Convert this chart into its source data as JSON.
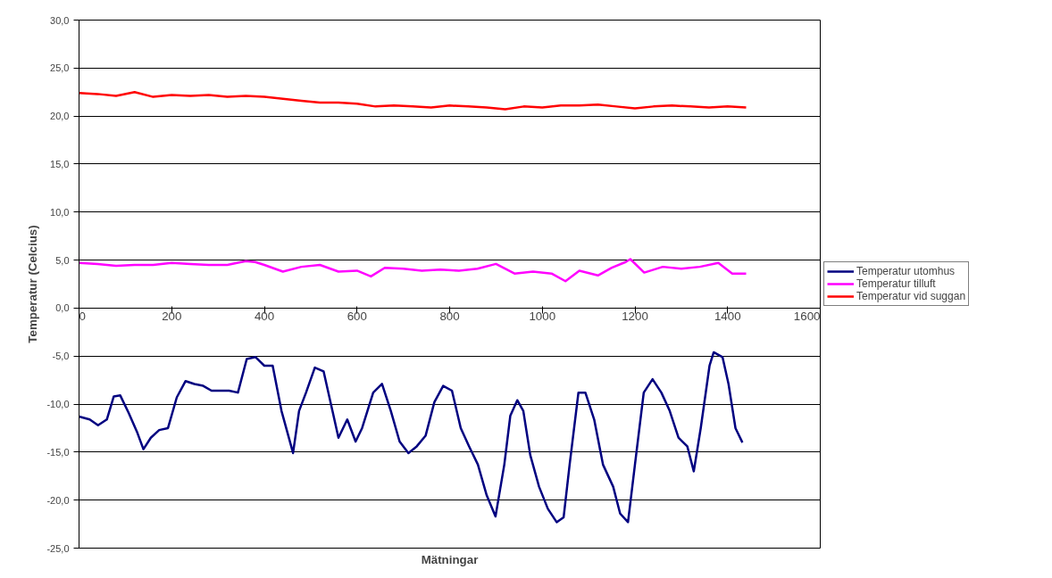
{
  "chart_data": {
    "type": "line",
    "xlabel": "Mätningar",
    "ylabel": "Temperatur (Celcius)",
    "xlim": [
      0,
      1600
    ],
    "ylim": [
      -25,
      30
    ],
    "xticks": [
      0,
      200,
      400,
      600,
      800,
      1000,
      1200,
      1400,
      1600
    ],
    "yticks": [
      {
        "value": -25,
        "label": "-25,0"
      },
      {
        "value": -20,
        "label": "-20,0"
      },
      {
        "value": -15,
        "label": "-15,0"
      },
      {
        "value": -10,
        "label": "-10,0"
      },
      {
        "value": -5,
        "label": "-5,0"
      },
      {
        "value": 0,
        "label": "0,0"
      },
      {
        "value": 5,
        "label": "5,0"
      },
      {
        "value": 10,
        "label": "10,0"
      },
      {
        "value": 15,
        "label": "15,0"
      },
      {
        "value": 20,
        "label": "20,0"
      },
      {
        "value": 25,
        "label": "25,0"
      },
      {
        "value": 30,
        "label": "30,0"
      }
    ],
    "grid": "y",
    "legend": "right",
    "marker": "none",
    "line_style": "solid",
    "series": [
      {
        "name": "Temperatur utomhus",
        "color": "#000080",
        "x": [
          0,
          23,
          41,
          60,
          75,
          89,
          107,
          126,
          139,
          155,
          173,
          192,
          211,
          230,
          249,
          268,
          286,
          324,
          343,
          362,
          381,
          400,
          418,
          437,
          462,
          475,
          490,
          509,
          528,
          547,
          560,
          579,
          597,
          611,
          635,
          654,
          673,
          692,
          711,
          729,
          748,
          767,
          786,
          805,
          824,
          842,
          861,
          880,
          899,
          918,
          931,
          946,
          959,
          974,
          993,
          1012,
          1031,
          1046,
          1059,
          1078,
          1093,
          1112,
          1131,
          1153,
          1168,
          1185,
          1200,
          1219,
          1238,
          1257,
          1275,
          1294,
          1313,
          1327,
          1342,
          1361,
          1370,
          1389,
          1402,
          1417,
          1432
        ],
        "values": [
          -11.3,
          -11.6,
          -12.2,
          -11.6,
          -9.2,
          -9.1,
          -10.9,
          -13.0,
          -14.7,
          -13.5,
          -12.7,
          -12.5,
          -9.3,
          -7.6,
          -7.9,
          -8.1,
          -8.6,
          -8.6,
          -8.8,
          -5.3,
          -5.1,
          -6.0,
          -6.0,
          -10.7,
          -15.1,
          -10.7,
          -8.8,
          -6.2,
          -6.6,
          -10.7,
          -13.5,
          -11.6,
          -13.9,
          -12.5,
          -8.8,
          -7.9,
          -10.7,
          -13.9,
          -15.1,
          -14.4,
          -13.3,
          -9.8,
          -8.1,
          -8.6,
          -12.5,
          -14.4,
          -16.3,
          -19.5,
          -21.7,
          -16.3,
          -11.2,
          -9.6,
          -10.7,
          -15.3,
          -18.6,
          -20.9,
          -22.3,
          -21.8,
          -16.3,
          -8.8,
          -8.8,
          -11.6,
          -16.3,
          -18.6,
          -21.4,
          -22.3,
          -16.3,
          -8.8,
          -7.4,
          -8.8,
          -10.7,
          -13.5,
          -14.4,
          -17.0,
          -12.5,
          -6.0,
          -4.6,
          -5.1,
          -7.9,
          -12.5,
          -14.0
        ]
      },
      {
        "name": "Temperatur tilluft",
        "color": "#ff00ff",
        "x": [
          0,
          40,
          80,
          120,
          160,
          200,
          240,
          280,
          320,
          360,
          380,
          400,
          440,
          480,
          520,
          560,
          600,
          630,
          660,
          700,
          740,
          780,
          820,
          860,
          900,
          940,
          980,
          1020,
          1050,
          1080,
          1120,
          1150,
          1180,
          1190,
          1220,
          1260,
          1300,
          1340,
          1380,
          1410,
          1440
        ],
        "values": [
          4.7,
          4.6,
          4.4,
          4.5,
          4.5,
          4.7,
          4.6,
          4.5,
          4.5,
          4.9,
          4.8,
          4.5,
          3.8,
          4.3,
          4.5,
          3.8,
          3.9,
          3.3,
          4.2,
          4.1,
          3.9,
          4.0,
          3.9,
          4.1,
          4.6,
          3.6,
          3.8,
          3.6,
          2.8,
          3.9,
          3.4,
          4.2,
          4.8,
          5.1,
          3.7,
          4.3,
          4.1,
          4.3,
          4.7,
          3.6,
          3.6
        ]
      },
      {
        "name": "Temperatur vid suggan",
        "color": "#ff0000",
        "x": [
          0,
          40,
          80,
          120,
          160,
          200,
          240,
          280,
          320,
          360,
          400,
          440,
          480,
          520,
          560,
          600,
          640,
          680,
          720,
          760,
          800,
          840,
          880,
          920,
          960,
          1000,
          1040,
          1080,
          1120,
          1160,
          1200,
          1240,
          1280,
          1320,
          1360,
          1400,
          1440
        ],
        "values": [
          22.4,
          22.3,
          22.1,
          22.5,
          22.0,
          22.2,
          22.1,
          22.2,
          22.0,
          22.1,
          22.0,
          21.8,
          21.6,
          21.4,
          21.4,
          21.3,
          21.0,
          21.1,
          21.0,
          20.9,
          21.1,
          21.0,
          20.9,
          20.7,
          21.0,
          20.9,
          21.1,
          21.1,
          21.2,
          21.0,
          20.8,
          21.0,
          21.1,
          21.0,
          20.9,
          21.0,
          20.9
        ]
      }
    ]
  }
}
